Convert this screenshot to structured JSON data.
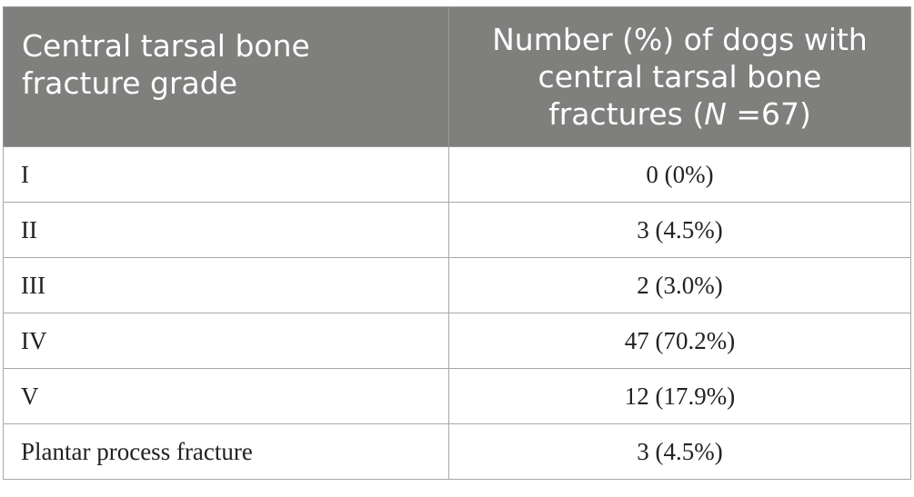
{
  "table": {
    "header": {
      "col1_line1": "Central tarsal bone",
      "col1_line2": "fracture grade",
      "col2_line1": "Number (%) of dogs with",
      "col2_line2": "central tarsal bone",
      "col2_line3_prefix": "fractures (",
      "col2_line3_italic": "N",
      "col2_line3_suffix": " =67)"
    },
    "rows": [
      {
        "grade": "I",
        "count": "0 (0%)"
      },
      {
        "grade": "II",
        "count": "3 (4.5%)"
      },
      {
        "grade": "III",
        "count": "2 (3.0%)"
      },
      {
        "grade": "IV",
        "count": "47 (70.2%)"
      },
      {
        "grade": "V",
        "count": "12 (17.9%)"
      },
      {
        "grade": "Plantar process fracture",
        "count": "3 (4.5%)"
      }
    ]
  }
}
